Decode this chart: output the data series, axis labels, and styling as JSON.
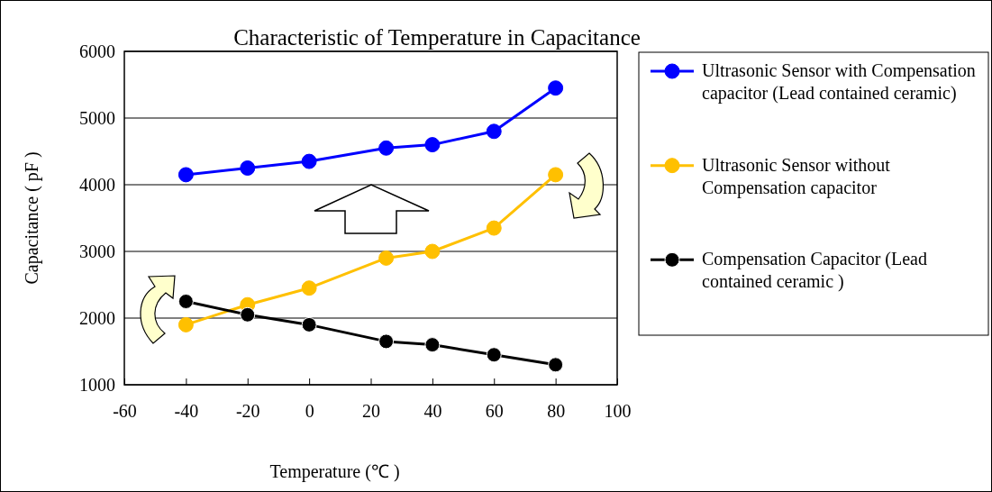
{
  "chart_data": {
    "type": "line",
    "title": "Characteristic of Temperature in Capacitance",
    "xlabel": "Temperature (℃ )",
    "ylabel": "Capacitance ( pF )",
    "x": [
      -40,
      -20,
      0,
      25,
      40,
      60,
      80
    ],
    "series": [
      {
        "name": "Ultrasonic Sensor with Compensation capacitor (Lead contained ceramic)",
        "color": "#0000ff",
        "values": [
          4150,
          4250,
          4350,
          4550,
          4600,
          4800,
          5450
        ]
      },
      {
        "name": "Ultrasonic Sensor  without Compensation capacitor",
        "color": "#ffc000",
        "values": [
          1900,
          2200,
          2450,
          2900,
          3000,
          3350,
          4150
        ]
      },
      {
        "name": "Compensation Capacitor (Lead contained ceramic )",
        "color": "#000000",
        "values": [
          2250,
          2050,
          1900,
          1650,
          1600,
          1450,
          1300
        ]
      }
    ],
    "xlim": [
      -60,
      100
    ],
    "xticks": [
      -60,
      -40,
      -20,
      0,
      20,
      40,
      60,
      80,
      100
    ],
    "ylim": [
      1000,
      6000
    ],
    "yticks": [
      1000,
      2000,
      3000,
      4000,
      5000,
      6000
    ],
    "grid": "y",
    "legend": "right",
    "marker": "circle",
    "line_style": "solid"
  }
}
